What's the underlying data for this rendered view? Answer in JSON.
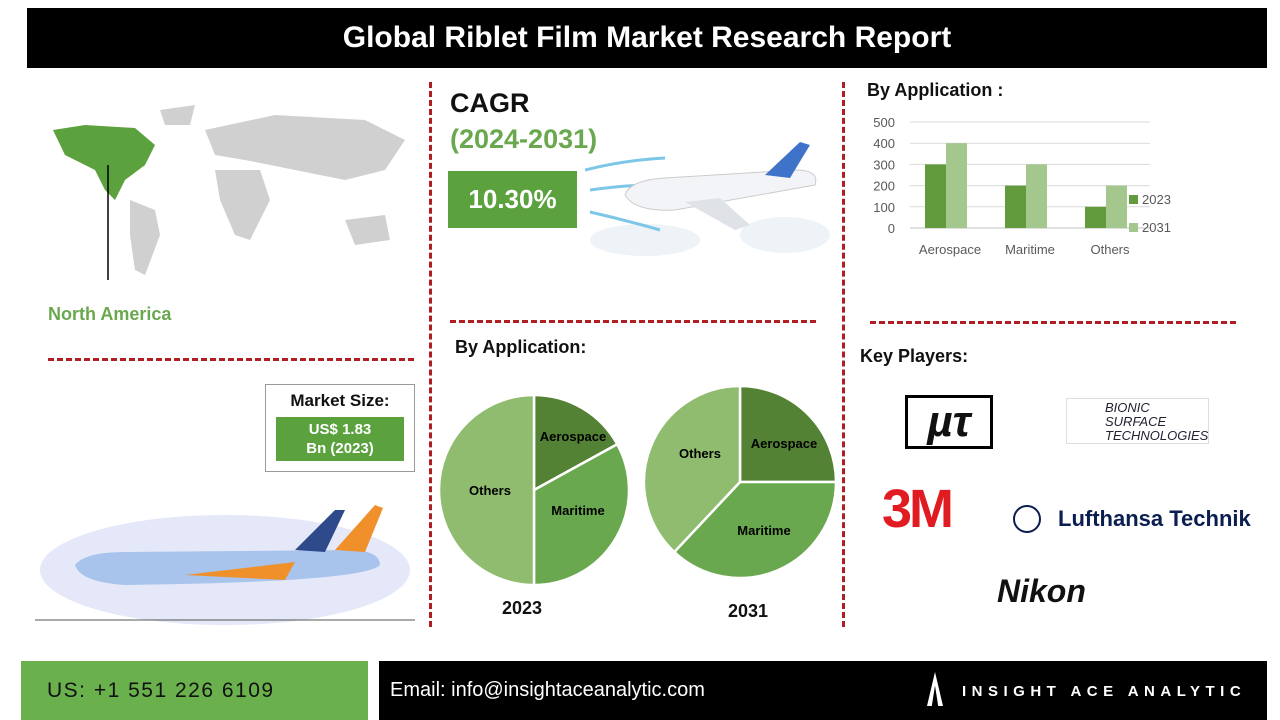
{
  "title": "Global Riblet Film Market Research Report",
  "region": {
    "label": "North America"
  },
  "cagr": {
    "label": "CAGR",
    "period": "(2024-2031)",
    "value": "10.30%"
  },
  "market_size": {
    "label": "Market Size:",
    "value_line1": "US$ 1.83",
    "value_line2": "Bn (2023)"
  },
  "pie_section": {
    "title": "By Application:"
  },
  "bar_section": {
    "title": "By Application :"
  },
  "key_players": {
    "title": "Key Players:",
    "logos": [
      "µτ",
      "BIONIC SURFACE TECHNOLOGIES",
      "3M",
      "Lufthansa Technik",
      "Nikon"
    ]
  },
  "footer": {
    "phone": "US: +1 551 226 6109",
    "email": "Email: info@insightaceanalytic.com",
    "brand": "INSIGHT ACE ANALYTIC"
  },
  "colors": {
    "dark": "#548235",
    "mid": "#6aa84f",
    "light": "#8fbc6f",
    "bar2023": "#629a3e",
    "bar2031": "#a3c78d",
    "accent": "#5ba13d",
    "divider": "#b01e23"
  },
  "chart_data": [
    {
      "type": "bar",
      "title": "By Application :",
      "categories": [
        "Aerospace",
        "Maritime",
        "Others"
      ],
      "series": [
        {
          "name": "2023",
          "values": [
            300,
            200,
            100
          ]
        },
        {
          "name": "2031",
          "values": [
            400,
            300,
            200
          ]
        }
      ],
      "ylim": [
        0,
        500
      ],
      "yticks": [
        0,
        100,
        200,
        300,
        400,
        500
      ],
      "grid": true,
      "legend": "right"
    },
    {
      "type": "pie",
      "title": "2023",
      "labels": [
        "Aerospace",
        "Maritime",
        "Others"
      ],
      "values": [
        17,
        33,
        50
      ]
    },
    {
      "type": "pie",
      "title": "2031",
      "labels": [
        "Aerospace",
        "Maritime",
        "Others"
      ],
      "values": [
        25,
        37,
        38
      ]
    }
  ]
}
